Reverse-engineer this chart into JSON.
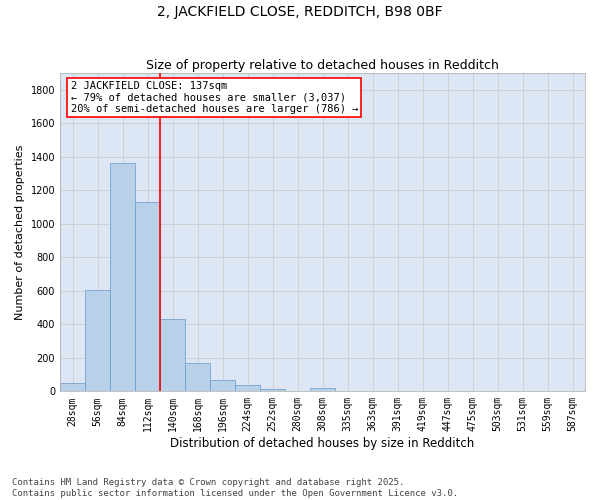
{
  "title": "2, JACKFIELD CLOSE, REDDITCH, B98 0BF",
  "subtitle": "Size of property relative to detached houses in Redditch",
  "xlabel": "Distribution of detached houses by size in Redditch",
  "ylabel": "Number of detached properties",
  "bins": [
    "28sqm",
    "56sqm",
    "84sqm",
    "112sqm",
    "140sqm",
    "168sqm",
    "196sqm",
    "224sqm",
    "252sqm",
    "280sqm",
    "308sqm",
    "335sqm",
    "363sqm",
    "391sqm",
    "419sqm",
    "447sqm",
    "475sqm",
    "503sqm",
    "531sqm",
    "559sqm",
    "587sqm"
  ],
  "bar_values": [
    50,
    605,
    1365,
    1130,
    430,
    170,
    65,
    40,
    15,
    0,
    20,
    0,
    0,
    0,
    0,
    0,
    0,
    0,
    0,
    0,
    0
  ],
  "bar_color": "#b8d0e8",
  "bar_edge_color": "#6699cc",
  "grid_color": "#cccccc",
  "bg_color": "#dce6f5",
  "vline_color": "red",
  "annotation_text": "2 JACKFIELD CLOSE: 137sqm\n← 79% of detached houses are smaller (3,037)\n20% of semi-detached houses are larger (786) →",
  "ylim": [
    0,
    1900
  ],
  "yticks": [
    0,
    200,
    400,
    600,
    800,
    1000,
    1200,
    1400,
    1600,
    1800
  ],
  "footer": "Contains HM Land Registry data © Crown copyright and database right 2025.\nContains public sector information licensed under the Open Government Licence v3.0.",
  "title_fontsize": 10,
  "subtitle_fontsize": 9,
  "xlabel_fontsize": 8.5,
  "ylabel_fontsize": 8,
  "tick_fontsize": 7,
  "annotation_fontsize": 7.5,
  "footer_fontsize": 6.5
}
